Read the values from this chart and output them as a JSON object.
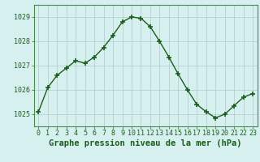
{
  "x": [
    0,
    1,
    2,
    3,
    4,
    5,
    6,
    7,
    8,
    9,
    10,
    11,
    12,
    13,
    14,
    15,
    16,
    17,
    18,
    19,
    20,
    21,
    22,
    23
  ],
  "y": [
    1025.1,
    1026.1,
    1026.6,
    1026.9,
    1027.2,
    1027.1,
    1027.35,
    1027.75,
    1028.25,
    1028.8,
    1029.0,
    1028.95,
    1028.6,
    1028.0,
    1027.35,
    1026.65,
    1026.0,
    1025.4,
    1025.1,
    1024.85,
    1025.0,
    1025.35,
    1025.7,
    1025.85
  ],
  "line_color": "#1a5e1a",
  "marker": "+",
  "marker_size": 4,
  "marker_lw": 1.2,
  "bg_color": "#d6f0f0",
  "grid_color": "#b0c8c8",
  "grid_color_major": "#9ab8b8",
  "title": "Graphe pression niveau de la mer (hPa)",
  "ylabel_ticks": [
    1025,
    1026,
    1027,
    1028,
    1029
  ],
  "xlim": [
    -0.5,
    23.5
  ],
  "ylim": [
    1024.5,
    1029.5
  ],
  "title_fontsize": 7.5,
  "tick_fontsize": 6.0,
  "line_width": 1.0
}
